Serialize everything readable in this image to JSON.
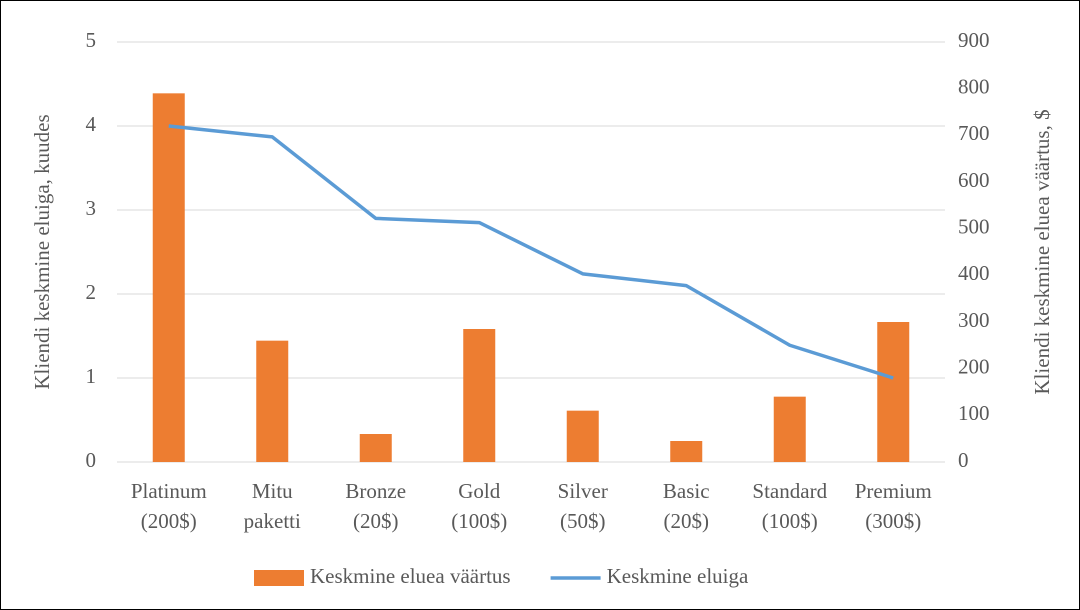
{
  "chart_data": {
    "type": "bar_line",
    "categories": [
      "Platinum (200$)",
      "Mitu paketti",
      "Bronze (20$)",
      "Gold (100$)",
      "Silver (50$)",
      "Basic (20$)",
      "Standard (100$)",
      "Premium (300$)"
    ],
    "series": [
      {
        "name": "Keskmine eluea väärtus",
        "type": "bar",
        "color": "#ed7d31",
        "axis": "y2",
        "values": [
          790,
          260,
          60,
          285,
          110,
          45,
          140,
          300
        ]
      },
      {
        "name": "Keskmine eluiga",
        "type": "line",
        "color": "#5b9bd5",
        "values": [
          4.0,
          3.87,
          2.9,
          2.85,
          2.24,
          2.1,
          1.39,
          1.0
        ]
      }
    ],
    "ylabel": "Kliendi keskmine eluiga, kuudes",
    "y2label": "Kliendi keskmine eluea väärtus, $",
    "ylim": [
      0,
      5
    ],
    "yticks": [
      0,
      1,
      2,
      3,
      4,
      5
    ],
    "y2lim": [
      0,
      900
    ],
    "y2ticks": [
      0,
      100,
      200,
      300,
      400,
      500,
      600,
      700,
      800,
      900
    ],
    "grid": true,
    "legend": "bottom"
  }
}
